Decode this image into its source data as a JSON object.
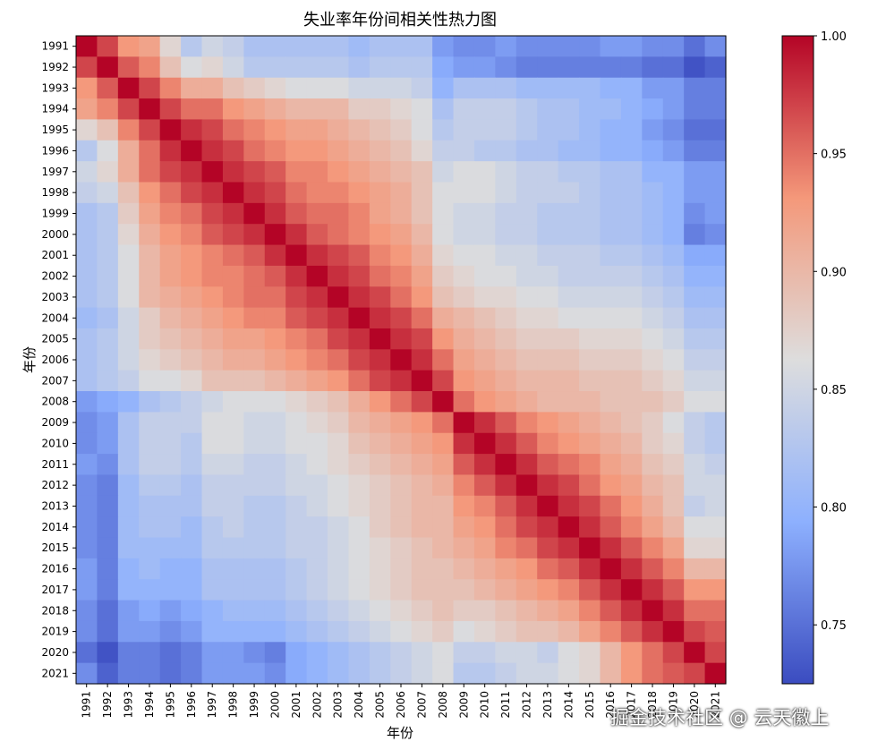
{
  "chart_data": {
    "type": "heatmap",
    "title": "失业率年份间相关性热力图",
    "xlabel": "年份",
    "ylabel": "年份",
    "categories": [
      "1991",
      "1992",
      "1993",
      "1994",
      "1995",
      "1996",
      "1997",
      "1998",
      "1999",
      "2000",
      "2001",
      "2002",
      "2003",
      "2004",
      "2005",
      "2006",
      "2007",
      "2008",
      "2009",
      "2010",
      "2011",
      "2012",
      "2013",
      "2014",
      "2015",
      "2016",
      "2017",
      "2018",
      "2019",
      "2020",
      "2021"
    ],
    "values": [
      [
        1.0,
        0.97,
        0.93,
        0.92,
        0.87,
        0.83,
        0.85,
        0.84,
        0.82,
        0.82,
        0.82,
        0.82,
        0.82,
        0.81,
        0.82,
        0.82,
        0.82,
        0.78,
        0.77,
        0.77,
        0.78,
        0.77,
        0.77,
        0.77,
        0.77,
        0.78,
        0.78,
        0.77,
        0.77,
        0.75,
        0.77
      ],
      [
        0.97,
        1.0,
        0.96,
        0.94,
        0.89,
        0.86,
        0.87,
        0.85,
        0.83,
        0.83,
        0.83,
        0.83,
        0.83,
        0.82,
        0.83,
        0.83,
        0.83,
        0.79,
        0.78,
        0.78,
        0.77,
        0.76,
        0.76,
        0.76,
        0.76,
        0.76,
        0.76,
        0.75,
        0.75,
        0.73,
        0.74
      ],
      [
        0.93,
        0.96,
        1.0,
        0.97,
        0.94,
        0.91,
        0.91,
        0.89,
        0.88,
        0.87,
        0.86,
        0.86,
        0.86,
        0.85,
        0.85,
        0.85,
        0.84,
        0.8,
        0.82,
        0.82,
        0.82,
        0.81,
        0.81,
        0.81,
        0.81,
        0.8,
        0.8,
        0.78,
        0.78,
        0.76,
        0.76
      ],
      [
        0.92,
        0.94,
        0.97,
        1.0,
        0.97,
        0.95,
        0.95,
        0.93,
        0.92,
        0.91,
        0.9,
        0.9,
        0.9,
        0.88,
        0.88,
        0.87,
        0.86,
        0.82,
        0.84,
        0.84,
        0.84,
        0.83,
        0.82,
        0.82,
        0.81,
        0.81,
        0.8,
        0.79,
        0.78,
        0.76,
        0.76
      ],
      [
        0.87,
        0.89,
        0.94,
        0.97,
        1.0,
        0.98,
        0.97,
        0.95,
        0.94,
        0.93,
        0.92,
        0.92,
        0.91,
        0.9,
        0.89,
        0.88,
        0.86,
        0.83,
        0.84,
        0.84,
        0.84,
        0.83,
        0.82,
        0.82,
        0.81,
        0.8,
        0.8,
        0.78,
        0.77,
        0.75,
        0.75
      ],
      [
        0.83,
        0.86,
        0.91,
        0.95,
        0.98,
        1.0,
        0.98,
        0.97,
        0.95,
        0.94,
        0.93,
        0.93,
        0.92,
        0.91,
        0.9,
        0.89,
        0.87,
        0.84,
        0.84,
        0.83,
        0.83,
        0.82,
        0.82,
        0.81,
        0.81,
        0.8,
        0.8,
        0.79,
        0.78,
        0.76,
        0.76
      ],
      [
        0.85,
        0.87,
        0.91,
        0.95,
        0.97,
        0.98,
        1.0,
        0.98,
        0.97,
        0.96,
        0.94,
        0.94,
        0.93,
        0.92,
        0.91,
        0.9,
        0.89,
        0.85,
        0.86,
        0.86,
        0.85,
        0.84,
        0.84,
        0.83,
        0.83,
        0.82,
        0.82,
        0.8,
        0.8,
        0.78,
        0.78
      ],
      [
        0.84,
        0.85,
        0.89,
        0.93,
        0.95,
        0.97,
        0.98,
        1.0,
        0.98,
        0.97,
        0.95,
        0.94,
        0.94,
        0.93,
        0.92,
        0.91,
        0.89,
        0.86,
        0.86,
        0.86,
        0.85,
        0.84,
        0.84,
        0.84,
        0.83,
        0.82,
        0.82,
        0.81,
        0.8,
        0.78,
        0.78
      ],
      [
        0.82,
        0.83,
        0.88,
        0.92,
        0.94,
        0.95,
        0.97,
        0.98,
        1.0,
        0.98,
        0.96,
        0.95,
        0.95,
        0.94,
        0.92,
        0.91,
        0.89,
        0.86,
        0.85,
        0.85,
        0.84,
        0.84,
        0.83,
        0.83,
        0.83,
        0.82,
        0.82,
        0.81,
        0.8,
        0.77,
        0.78
      ],
      [
        0.82,
        0.83,
        0.87,
        0.91,
        0.93,
        0.94,
        0.96,
        0.97,
        0.98,
        1.0,
        0.98,
        0.96,
        0.95,
        0.94,
        0.93,
        0.92,
        0.9,
        0.86,
        0.85,
        0.85,
        0.84,
        0.84,
        0.83,
        0.83,
        0.83,
        0.82,
        0.82,
        0.81,
        0.8,
        0.76,
        0.77
      ],
      [
        0.82,
        0.83,
        0.86,
        0.9,
        0.92,
        0.93,
        0.94,
        0.95,
        0.96,
        0.98,
        1.0,
        0.98,
        0.97,
        0.96,
        0.94,
        0.93,
        0.91,
        0.87,
        0.86,
        0.86,
        0.85,
        0.85,
        0.84,
        0.84,
        0.84,
        0.83,
        0.83,
        0.82,
        0.81,
        0.79,
        0.79
      ],
      [
        0.82,
        0.83,
        0.86,
        0.9,
        0.92,
        0.93,
        0.94,
        0.94,
        0.95,
        0.96,
        0.98,
        1.0,
        0.98,
        0.97,
        0.95,
        0.94,
        0.92,
        0.88,
        0.87,
        0.86,
        0.86,
        0.85,
        0.85,
        0.84,
        0.84,
        0.84,
        0.84,
        0.83,
        0.82,
        0.8,
        0.8
      ],
      [
        0.82,
        0.83,
        0.86,
        0.9,
        0.91,
        0.92,
        0.93,
        0.94,
        0.95,
        0.95,
        0.97,
        0.98,
        1.0,
        0.98,
        0.97,
        0.95,
        0.93,
        0.89,
        0.88,
        0.87,
        0.87,
        0.86,
        0.86,
        0.85,
        0.85,
        0.85,
        0.85,
        0.84,
        0.83,
        0.81,
        0.81
      ],
      [
        0.81,
        0.82,
        0.85,
        0.88,
        0.9,
        0.91,
        0.92,
        0.93,
        0.94,
        0.94,
        0.96,
        0.97,
        0.98,
        1.0,
        0.98,
        0.97,
        0.95,
        0.91,
        0.9,
        0.89,
        0.88,
        0.87,
        0.87,
        0.86,
        0.86,
        0.86,
        0.86,
        0.85,
        0.84,
        0.82,
        0.82
      ],
      [
        0.82,
        0.83,
        0.85,
        0.88,
        0.89,
        0.9,
        0.91,
        0.92,
        0.92,
        0.93,
        0.94,
        0.95,
        0.97,
        0.98,
        1.0,
        0.98,
        0.97,
        0.93,
        0.91,
        0.9,
        0.89,
        0.88,
        0.88,
        0.88,
        0.87,
        0.87,
        0.87,
        0.86,
        0.85,
        0.83,
        0.83
      ],
      [
        0.82,
        0.83,
        0.85,
        0.87,
        0.88,
        0.89,
        0.9,
        0.91,
        0.91,
        0.92,
        0.93,
        0.94,
        0.95,
        0.97,
        0.98,
        1.0,
        0.98,
        0.95,
        0.92,
        0.91,
        0.9,
        0.89,
        0.89,
        0.89,
        0.88,
        0.88,
        0.88,
        0.87,
        0.86,
        0.84,
        0.84
      ],
      [
        0.82,
        0.83,
        0.84,
        0.86,
        0.86,
        0.87,
        0.89,
        0.89,
        0.89,
        0.9,
        0.91,
        0.92,
        0.93,
        0.95,
        0.97,
        0.98,
        1.0,
        0.97,
        0.93,
        0.92,
        0.91,
        0.9,
        0.9,
        0.9,
        0.89,
        0.89,
        0.89,
        0.88,
        0.87,
        0.85,
        0.85
      ],
      [
        0.78,
        0.79,
        0.8,
        0.82,
        0.83,
        0.84,
        0.85,
        0.86,
        0.86,
        0.86,
        0.87,
        0.88,
        0.89,
        0.91,
        0.93,
        0.95,
        0.97,
        1.0,
        0.95,
        0.93,
        0.92,
        0.91,
        0.9,
        0.9,
        0.9,
        0.89,
        0.89,
        0.89,
        0.88,
        0.86,
        0.86
      ],
      [
        0.77,
        0.78,
        0.82,
        0.84,
        0.84,
        0.84,
        0.86,
        0.86,
        0.85,
        0.85,
        0.86,
        0.87,
        0.88,
        0.9,
        0.91,
        0.92,
        0.93,
        0.95,
        1.0,
        0.98,
        0.96,
        0.94,
        0.93,
        0.92,
        0.91,
        0.9,
        0.89,
        0.88,
        0.86,
        0.84,
        0.83
      ],
      [
        0.77,
        0.78,
        0.82,
        0.84,
        0.84,
        0.83,
        0.86,
        0.86,
        0.85,
        0.85,
        0.86,
        0.86,
        0.87,
        0.89,
        0.9,
        0.91,
        0.92,
        0.93,
        0.98,
        1.0,
        0.98,
        0.96,
        0.94,
        0.93,
        0.92,
        0.91,
        0.9,
        0.88,
        0.87,
        0.84,
        0.83
      ],
      [
        0.78,
        0.77,
        0.82,
        0.84,
        0.84,
        0.83,
        0.85,
        0.85,
        0.84,
        0.84,
        0.85,
        0.86,
        0.87,
        0.88,
        0.89,
        0.9,
        0.91,
        0.92,
        0.96,
        0.98,
        1.0,
        0.98,
        0.96,
        0.95,
        0.94,
        0.92,
        0.91,
        0.89,
        0.88,
        0.85,
        0.84
      ],
      [
        0.77,
        0.76,
        0.81,
        0.83,
        0.83,
        0.82,
        0.84,
        0.84,
        0.84,
        0.84,
        0.85,
        0.85,
        0.86,
        0.87,
        0.88,
        0.89,
        0.9,
        0.91,
        0.94,
        0.96,
        0.98,
        1.0,
        0.98,
        0.97,
        0.95,
        0.93,
        0.92,
        0.9,
        0.89,
        0.85,
        0.85
      ],
      [
        0.77,
        0.76,
        0.81,
        0.82,
        0.82,
        0.82,
        0.84,
        0.84,
        0.83,
        0.83,
        0.84,
        0.85,
        0.86,
        0.87,
        0.88,
        0.89,
        0.9,
        0.9,
        0.93,
        0.94,
        0.96,
        0.98,
        1.0,
        0.98,
        0.97,
        0.95,
        0.93,
        0.91,
        0.89,
        0.84,
        0.85
      ],
      [
        0.77,
        0.76,
        0.81,
        0.82,
        0.82,
        0.81,
        0.83,
        0.84,
        0.83,
        0.83,
        0.84,
        0.84,
        0.85,
        0.86,
        0.88,
        0.89,
        0.9,
        0.9,
        0.92,
        0.93,
        0.95,
        0.97,
        0.98,
        1.0,
        0.98,
        0.96,
        0.94,
        0.92,
        0.9,
        0.86,
        0.86
      ],
      [
        0.77,
        0.76,
        0.81,
        0.81,
        0.81,
        0.81,
        0.83,
        0.83,
        0.83,
        0.83,
        0.84,
        0.84,
        0.85,
        0.86,
        0.87,
        0.88,
        0.89,
        0.9,
        0.91,
        0.92,
        0.94,
        0.95,
        0.97,
        0.98,
        1.0,
        0.98,
        0.96,
        0.94,
        0.92,
        0.87,
        0.87
      ],
      [
        0.78,
        0.76,
        0.8,
        0.81,
        0.8,
        0.8,
        0.82,
        0.82,
        0.82,
        0.82,
        0.83,
        0.84,
        0.85,
        0.86,
        0.87,
        0.88,
        0.89,
        0.89,
        0.9,
        0.91,
        0.92,
        0.93,
        0.95,
        0.96,
        0.98,
        1.0,
        0.98,
        0.96,
        0.94,
        0.9,
        0.9
      ],
      [
        0.78,
        0.76,
        0.8,
        0.8,
        0.8,
        0.8,
        0.82,
        0.82,
        0.82,
        0.82,
        0.83,
        0.84,
        0.85,
        0.86,
        0.87,
        0.88,
        0.89,
        0.89,
        0.89,
        0.9,
        0.91,
        0.92,
        0.93,
        0.94,
        0.96,
        0.98,
        1.0,
        0.98,
        0.96,
        0.93,
        0.93
      ],
      [
        0.77,
        0.75,
        0.78,
        0.79,
        0.78,
        0.79,
        0.8,
        0.81,
        0.81,
        0.81,
        0.82,
        0.83,
        0.84,
        0.85,
        0.86,
        0.87,
        0.88,
        0.89,
        0.88,
        0.88,
        0.89,
        0.9,
        0.91,
        0.92,
        0.94,
        0.96,
        0.98,
        1.0,
        0.98,
        0.95,
        0.95
      ],
      [
        0.77,
        0.75,
        0.78,
        0.78,
        0.77,
        0.78,
        0.8,
        0.8,
        0.8,
        0.8,
        0.81,
        0.82,
        0.83,
        0.84,
        0.85,
        0.86,
        0.87,
        0.88,
        0.86,
        0.87,
        0.88,
        0.89,
        0.89,
        0.9,
        0.92,
        0.94,
        0.96,
        0.98,
        1.0,
        0.97,
        0.96
      ],
      [
        0.75,
        0.73,
        0.76,
        0.76,
        0.75,
        0.76,
        0.78,
        0.78,
        0.77,
        0.76,
        0.79,
        0.8,
        0.81,
        0.82,
        0.83,
        0.84,
        0.85,
        0.86,
        0.84,
        0.84,
        0.85,
        0.85,
        0.84,
        0.86,
        0.87,
        0.9,
        0.93,
        0.95,
        0.97,
        1.0,
        0.97
      ],
      [
        0.77,
        0.74,
        0.76,
        0.76,
        0.75,
        0.76,
        0.78,
        0.78,
        0.78,
        0.77,
        0.79,
        0.8,
        0.81,
        0.82,
        0.83,
        0.84,
        0.85,
        0.86,
        0.83,
        0.83,
        0.84,
        0.85,
        0.85,
        0.86,
        0.87,
        0.9,
        0.93,
        0.95,
        0.96,
        0.97,
        1.0
      ]
    ],
    "colorbar": {
      "min": 0.725,
      "max": 1.0,
      "ticks": [
        "0.75",
        "0.80",
        "0.85",
        "0.90",
        "0.95",
        "1.00"
      ]
    },
    "colormap": "coolwarm",
    "grid": false,
    "legend": "colorbar-right"
  },
  "watermark": "掘金技术社区 @ 云天徽上"
}
